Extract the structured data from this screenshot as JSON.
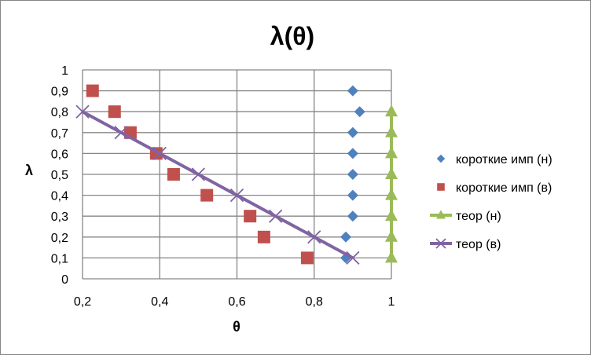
{
  "chart_data": {
    "type": "scatter",
    "title": "λ(θ)",
    "xlabel": "θ",
    "ylabel": "λ",
    "xlim": [
      0.2,
      1
    ],
    "ylim": [
      0,
      1
    ],
    "xticks": [
      "0,2",
      "0,4",
      "0,6",
      "0,8",
      "1"
    ],
    "xtick_values": [
      0.2,
      0.4,
      0.6,
      0.8,
      1
    ],
    "yticks": [
      "0",
      "0,1",
      "0,2",
      "0,3",
      "0,4",
      "0,5",
      "0,6",
      "0,7",
      "0,8",
      "0,9",
      "1"
    ],
    "ytick_values": [
      0,
      0.1,
      0.2,
      0.3,
      0.4,
      0.5,
      0.6,
      0.7,
      0.8,
      0.9,
      1
    ],
    "grid": true,
    "legend_position": "right",
    "series": [
      {
        "name": "короткие имп (н)",
        "marker": "diamond",
        "line": false,
        "color": "#4F81BD",
        "x": [
          0.9,
          0.918,
          0.9,
          0.9,
          0.9,
          0.9,
          0.9,
          0.882,
          0.882
        ],
        "y": [
          0.9,
          0.8,
          0.7,
          0.6,
          0.5,
          0.4,
          0.3,
          0.2,
          0.1
        ]
      },
      {
        "name": "короткие имп (в)",
        "marker": "square",
        "line": false,
        "color": "#C0504D",
        "x": [
          0.226,
          0.283,
          0.324,
          0.391,
          0.436,
          0.522,
          0.634,
          0.67,
          0.782
        ],
        "y": [
          0.9,
          0.8,
          0.7,
          0.6,
          0.5,
          0.4,
          0.3,
          0.2,
          0.1
        ]
      },
      {
        "name": "теор (н)",
        "marker": "triangle",
        "line": true,
        "color": "#9BBB59",
        "x": [
          1,
          1,
          1,
          1,
          1,
          1,
          1,
          1
        ],
        "y": [
          0.1,
          0.2,
          0.3,
          0.4,
          0.5,
          0.6,
          0.7,
          0.8
        ]
      },
      {
        "name": "теор (в)",
        "marker": "x",
        "line": true,
        "color": "#8064A2",
        "x": [
          0.2,
          0.3,
          0.4,
          0.5,
          0.6,
          0.7,
          0.8,
          0.9
        ],
        "y": [
          0.8,
          0.7,
          0.6,
          0.5,
          0.4,
          0.3,
          0.2,
          0.1
        ]
      }
    ]
  }
}
